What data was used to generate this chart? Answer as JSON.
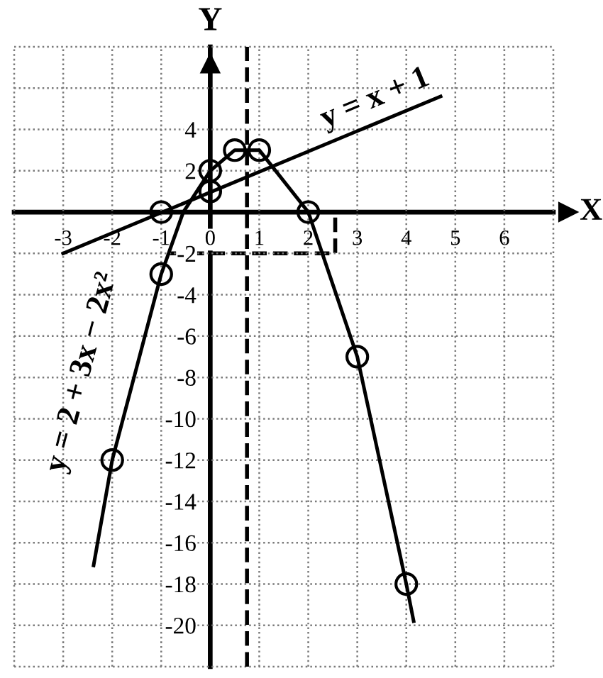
{
  "chart_data": {
    "type": "line",
    "xlabel": "X",
    "ylabel": "Y",
    "xlim": [
      -4,
      7
    ],
    "ylim": [
      -22,
      8
    ],
    "xticks": [
      {
        "value": -4,
        "label": null
      },
      -3,
      -2,
      -1,
      0,
      1,
      2,
      3,
      4,
      5,
      6,
      {
        "value": 7,
        "label": null
      }
    ],
    "yticks": [
      {
        "value": -22,
        "label": null
      },
      -20,
      -18,
      -16,
      -14,
      -12,
      -10,
      -8,
      -6,
      -4,
      -2,
      {
        "value": 0,
        "label": null
      },
      2,
      4,
      {
        "value": 6,
        "label": null
      },
      {
        "value": 8,
        "label": null
      }
    ],
    "grid": true,
    "series": [
      {
        "name": "y = 2 + 3x − 2x²",
        "color": "#000000",
        "x": [
          -2.38,
          -2,
          -1,
          -0.55,
          0,
          0.5,
          1,
          2,
          3,
          4,
          4.15
        ],
        "values": [
          -17.1,
          -12,
          -3,
          0,
          2,
          3,
          3,
          0,
          -7,
          -18,
          -19.8
        ]
      },
      {
        "name": "y = x + 1",
        "color": "#000000",
        "x": [
          -3,
          4.7
        ],
        "values": [
          -2,
          5.6
        ]
      },
      {
        "type": "line",
        "line_style": "dashed",
        "color": "#000000",
        "x": [
          -0.85,
          2.55,
          2.55
        ],
        "values": [
          -2,
          -2,
          0
        ]
      },
      {
        "type": "scatter",
        "marker": "circle",
        "color": "#000000",
        "x": [
          -2,
          -1,
          -1,
          0,
          0,
          0.5,
          1,
          2,
          3,
          4
        ],
        "values": [
          -12,
          -3,
          0,
          1,
          2,
          3,
          3,
          0,
          -7,
          -18
        ]
      }
    ],
    "ref_lines": [
      {
        "axis": "x",
        "value": 0.75,
        "line_style": "dashed",
        "color": "#000000"
      }
    ]
  }
}
